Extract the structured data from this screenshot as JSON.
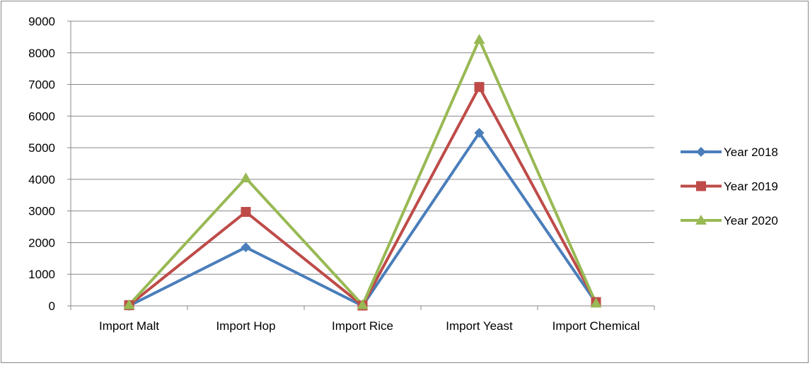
{
  "chart_data": {
    "type": "line",
    "categories": [
      "Import Malt",
      "Import Hop",
      "Import Rice",
      "Import Yeast",
      "Import Chemical"
    ],
    "series": [
      {
        "name": "Year 2018",
        "color": "#4a7ebb",
        "marker": "diamond",
        "values": [
          0,
          1850,
          0,
          5470,
          100
        ]
      },
      {
        "name": "Year 2019",
        "color": "#be4b48",
        "marker": "square",
        "values": [
          20,
          2970,
          10,
          6920,
          120
        ]
      },
      {
        "name": "Year 2020",
        "color": "#98b954",
        "marker": "triangle",
        "values": [
          30,
          4040,
          30,
          8420,
          80
        ]
      }
    ],
    "ylim": [
      0,
      9000
    ],
    "yticks": [
      0,
      1000,
      2000,
      3000,
      4000,
      5000,
      6000,
      7000,
      8000,
      9000
    ],
    "grid": true,
    "legend": "right"
  }
}
